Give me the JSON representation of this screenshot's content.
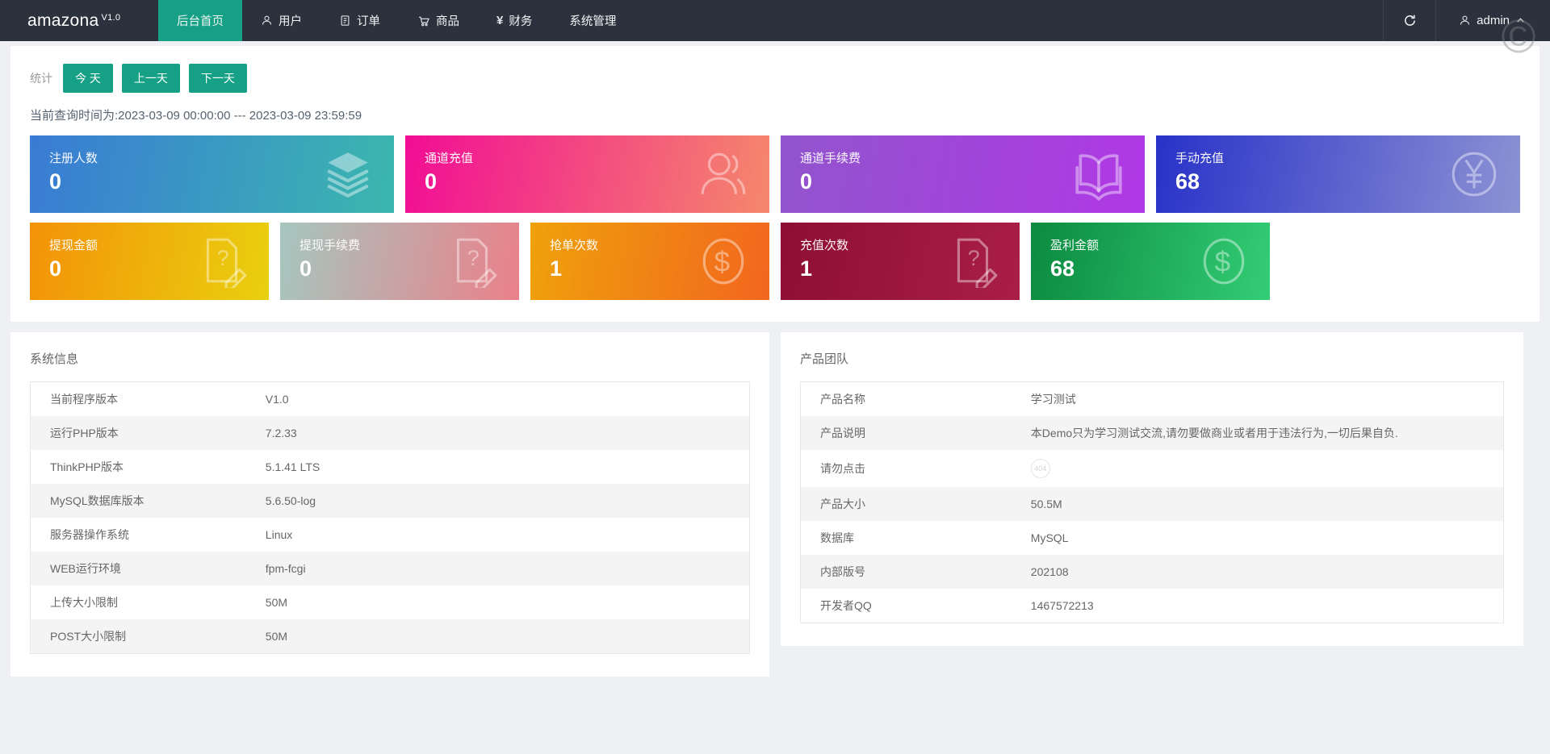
{
  "colors": {
    "navbar_bg": "#2c323d",
    "accent_green": "#16a086",
    "page_bg": "#eef0f3"
  },
  "navbar": {
    "logo": "amazona",
    "logo_version": "V1.0",
    "menu": [
      {
        "label": "后台首页",
        "icon": null,
        "active": true
      },
      {
        "label": "用户",
        "icon": "user-icon",
        "active": false
      },
      {
        "label": "订单",
        "icon": "order-icon",
        "active": false
      },
      {
        "label": "商品",
        "icon": "cart-icon",
        "active": false
      },
      {
        "label": "财务",
        "icon": "yen-icon",
        "active": false
      },
      {
        "label": "系统管理",
        "icon": null,
        "active": false
      }
    ],
    "user": "admin"
  },
  "stats": {
    "label": "统计",
    "buttons": [
      "今 天",
      "上一天",
      "下一天"
    ],
    "query_time": "当前查询时间为:2023-03-09 00:00:00 --- 2023-03-09 23:59:59",
    "cards": [
      {
        "row": 1,
        "label": "注册人数",
        "value": "0",
        "icon": "layers-icon",
        "colors": [
          "#3a7bd5",
          "#3bb7ae"
        ]
      },
      {
        "row": 1,
        "label": "通道充值",
        "value": "0",
        "icon": "users-icon",
        "colors": [
          "#f10d95",
          "#f5886c"
        ]
      },
      {
        "row": 1,
        "label": "通道手续费",
        "value": "0",
        "icon": "book-icon",
        "colors": [
          "#9155cd",
          "#b038e5"
        ]
      },
      {
        "row": 1,
        "label": "手动充值",
        "value": "68",
        "icon": "yen-circle-icon",
        "colors": [
          "#2832c8",
          "#8d92d3"
        ]
      },
      {
        "row": 2,
        "label": "提现金额",
        "value": "0",
        "icon": "doc-question-icon",
        "colors": [
          "#f39208",
          "#e9d00f"
        ]
      },
      {
        "row": 2,
        "label": "提现手续费",
        "value": "0",
        "icon": "doc-question-icon",
        "colors": [
          "#a6c6bf",
          "#ea8089"
        ]
      },
      {
        "row": 2,
        "label": "抢单次数",
        "value": "1",
        "icon": "dollar-circle-icon",
        "colors": [
          "#efa10b",
          "#f2661f"
        ]
      },
      {
        "row": 2,
        "label": "充值次数",
        "value": "1",
        "icon": "doc-question-icon",
        "colors": [
          "#8e0e33",
          "#a91e47"
        ]
      },
      {
        "row": 2,
        "label": "盈利金额",
        "value": "68",
        "icon": "dollar-circle-icon",
        "colors": [
          "#0b8a40",
          "#33cd75"
        ]
      }
    ]
  },
  "system_info": {
    "title": "系统信息",
    "rows": [
      [
        "当前程序版本",
        "V1.0"
      ],
      [
        "运行PHP版本",
        "7.2.33"
      ],
      [
        "ThinkPHP版本",
        "5.1.41 LTS"
      ],
      [
        "MySQL数据库版本",
        "5.6.50-log"
      ],
      [
        "服务器操作系统",
        "Linux"
      ],
      [
        "WEB运行环境",
        "fpm-fcgi"
      ],
      [
        "上传大小限制",
        "50M"
      ],
      [
        "POST大小限制",
        "50M"
      ]
    ]
  },
  "product_team": {
    "title": "产品团队",
    "rows": [
      [
        "产品名称",
        "学习测试"
      ],
      [
        "产品说明",
        "本Demo只为学习测试交流,请勿要做商业或者用于违法行为,一切后果自负."
      ],
      [
        "请勿点击",
        "404",
        "badge"
      ],
      [
        "产品大小",
        "50.5M"
      ],
      [
        "数据库",
        "MySQL"
      ],
      [
        "内部版号",
        "202108"
      ],
      [
        "开发者QQ",
        "1467572213"
      ]
    ]
  }
}
